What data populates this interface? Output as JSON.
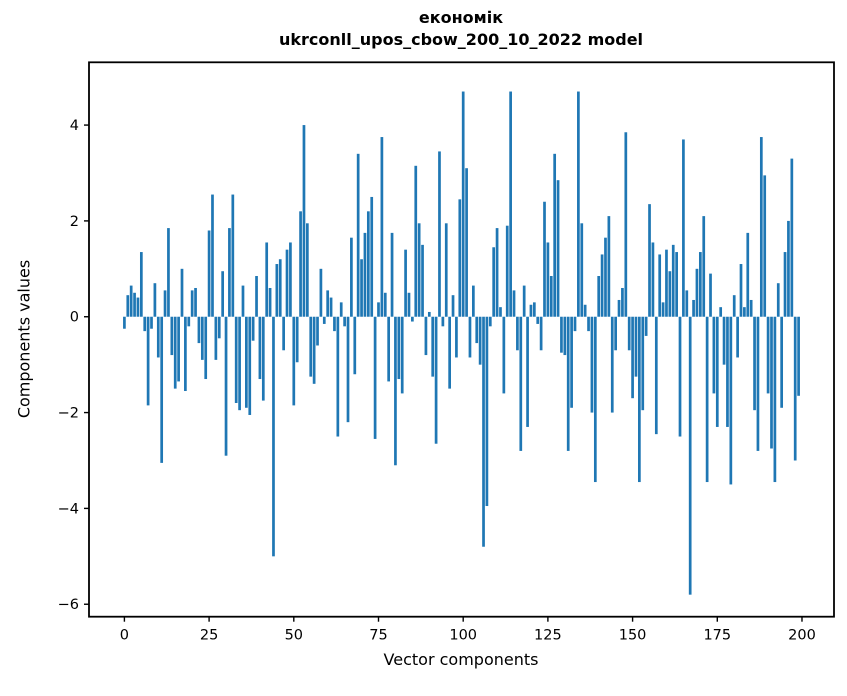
{
  "figure": {
    "title": "економік",
    "subtitle": "ukrconll_upos_cbow_200_10_2022 model"
  },
  "chart_data": {
    "type": "bar",
    "title": "економік",
    "subtitle": "ukrconll_upos_cbow_200_10_2022 model",
    "xlabel": "Vector components",
    "ylabel": "Components values",
    "bar_color": "#1f77b4",
    "background_color": "#ffffff",
    "grid": false,
    "legend": false,
    "xlim": [
      -10.45,
      209.45
    ],
    "ylim": [
      -6.26,
      5.31
    ],
    "xticks": [
      0,
      25,
      50,
      75,
      100,
      125,
      150,
      175,
      200
    ],
    "yticks": [
      {
        "v": 4,
        "label": "4"
      },
      {
        "v": 2,
        "label": "2"
      },
      {
        "v": 0,
        "label": "0"
      },
      {
        "v": -2,
        "label": "−2"
      },
      {
        "v": -4,
        "label": "−4"
      },
      {
        "v": -6,
        "label": "−6"
      }
    ],
    "x_is_index": true,
    "n_components": 200,
    "values": [
      -0.25,
      0.45,
      0.65,
      0.5,
      0.4,
      1.35,
      -0.3,
      -1.85,
      -0.25,
      0.7,
      -0.85,
      -3.05,
      0.55,
      1.85,
      -0.8,
      -1.5,
      -1.35,
      1.0,
      -1.55,
      -0.2,
      0.55,
      0.6,
      -0.55,
      -0.9,
      -1.3,
      1.8,
      2.55,
      -0.9,
      -0.45,
      0.95,
      -2.9,
      1.85,
      2.55,
      -1.8,
      -1.95,
      0.65,
      -1.9,
      -2.05,
      -0.5,
      0.85,
      -1.3,
      -1.75,
      1.55,
      0.6,
      -5.0,
      1.1,
      1.2,
      -0.7,
      1.4,
      1.55,
      -1.85,
      -0.95,
      2.2,
      4.0,
      1.95,
      -1.25,
      -1.4,
      -0.6,
      1.0,
      -0.15,
      0.55,
      0.4,
      -0.3,
      -2.5,
      0.3,
      -0.2,
      -2.2,
      1.65,
      -1.2,
      3.4,
      1.2,
      1.75,
      2.2,
      2.5,
      -2.55,
      0.3,
      3.75,
      0.5,
      -1.35,
      1.75,
      -3.1,
      -1.3,
      -1.6,
      1.4,
      0.5,
      -0.1,
      3.15,
      1.95,
      1.5,
      -0.8,
      0.1,
      -1.25,
      -2.65,
      3.45,
      -0.2,
      1.95,
      -1.5,
      0.45,
      -0.85,
      2.45,
      4.7,
      3.1,
      -0.85,
      0.65,
      -0.55,
      -1.0,
      -4.8,
      -3.95,
      -0.2,
      1.45,
      1.85,
      0.2,
      -1.6,
      1.9,
      4.7,
      0.55,
      -0.7,
      -2.8,
      0.65,
      -2.3,
      0.25,
      0.3,
      -0.15,
      -0.7,
      2.4,
      1.55,
      0.85,
      3.4,
      2.85,
      -0.75,
      -0.8,
      -2.8,
      -1.9,
      -0.3,
      4.7,
      1.95,
      0.25,
      -0.3,
      -2.0,
      -3.45,
      0.85,
      1.3,
      1.65,
      2.1,
      -2.0,
      -0.7,
      0.35,
      0.6,
      3.85,
      -0.7,
      -1.7,
      -1.25,
      -3.45,
      -1.95,
      -0.4,
      2.35,
      1.55,
      -2.45,
      1.3,
      0.3,
      1.4,
      0.95,
      1.5,
      1.35,
      -2.5,
      3.7,
      0.55,
      -5.8,
      0.35,
      1.0,
      1.35,
      2.1,
      -3.45,
      0.9,
      -1.6,
      -2.3,
      0.2,
      -1.0,
      -2.3,
      -3.5,
      0.45,
      -0.85,
      1.1,
      0.2,
      1.75,
      0.35,
      -1.95,
      -2.8,
      3.75,
      2.95,
      -1.6,
      -2.75,
      -3.45,
      0.7,
      -1.9,
      1.35,
      2.0,
      3.3,
      -3.0,
      -1.65
    ]
  }
}
